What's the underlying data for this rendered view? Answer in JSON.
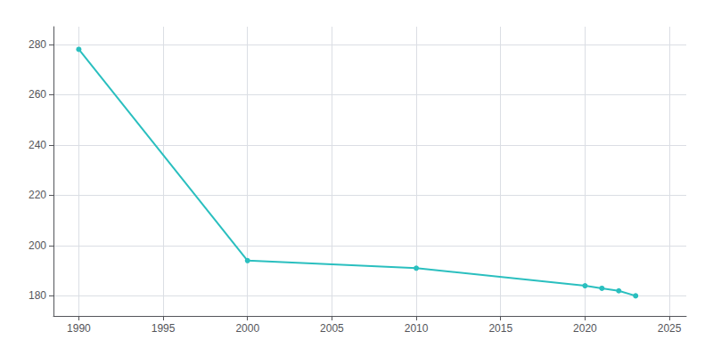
{
  "chart_data": {
    "type": "line",
    "x": [
      1990,
      2000,
      2010,
      2020,
      2021,
      2022,
      2023
    ],
    "values": [
      278,
      194,
      191,
      184,
      183,
      182,
      180
    ],
    "color": "#2abfbf",
    "marker": "circle",
    "xlim": [
      1988.5,
      2026
    ],
    "ylim": [
      172,
      287
    ],
    "xticks": [
      1990,
      1995,
      2000,
      2005,
      2010,
      2015,
      2020,
      2025
    ],
    "yticks": [
      180,
      200,
      220,
      240,
      260,
      280
    ],
    "grid": true
  }
}
